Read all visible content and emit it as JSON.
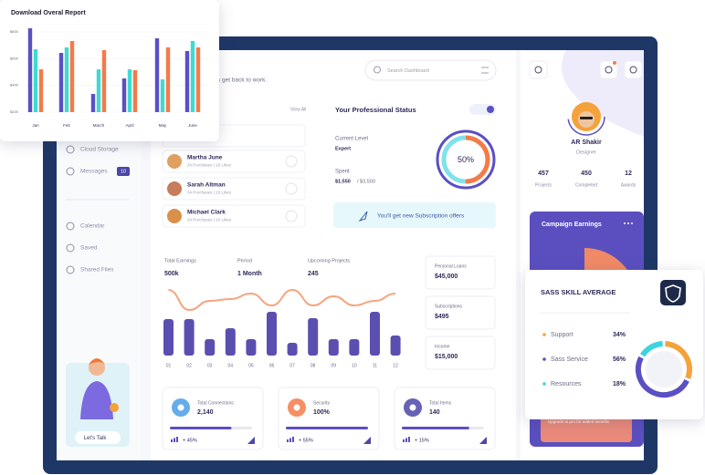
{
  "report_card": {
    "title": "Download Overal Report"
  },
  "chart_data": [
    {
      "type": "bar",
      "ylim": [
        200,
        850
      ],
      "yticks": [
        {
          "value": 800,
          "label": "$800"
        },
        {
          "value": 600,
          "label": "$600"
        },
        {
          "value": 400,
          "label": "$400"
        },
        {
          "value": 200,
          "label": "$200"
        }
      ],
      "categories": [
        "Jan",
        "Feb",
        "March",
        "April",
        "May",
        "June"
      ],
      "series": [
        {
          "color": "#5b4fc4",
          "values": [
            827,
            643,
            336,
            452,
            752,
            657
          ]
        },
        {
          "color": "#3ddbd0",
          "values": [
            670,
            684,
            520,
            520,
            445,
            732
          ]
        },
        {
          "color": "#f37b4a",
          "values": [
            520,
            732,
            664,
            514,
            684,
            684
          ]
        }
      ]
    },
    {
      "type": "bar",
      "categories": [
        "01",
        "02",
        "03",
        "04",
        "05",
        "06",
        "07",
        "08",
        "09",
        "10",
        "11",
        "12"
      ],
      "series": [
        {
          "type": "bar",
          "color": "#5a4fb0",
          "values": [
            40,
            40,
            18,
            30,
            18,
            48,
            14,
            41,
            18,
            18,
            48,
            22
          ]
        },
        {
          "type": "line",
          "color": "#f6a47f",
          "values": [
            72,
            50,
            60,
            62,
            68,
            55,
            72,
            55,
            65,
            55,
            60,
            68
          ]
        }
      ]
    }
  ],
  "header": {
    "greeting": "s get back to work.",
    "search_placeholder": "Search Dashboard"
  },
  "sidebar": {
    "items": [
      {
        "label": "Cloud Storage"
      },
      {
        "label": "Messages",
        "badge": "10"
      },
      {
        "label": "Calendar"
      },
      {
        "label": "Saved"
      },
      {
        "label": "Shared Files"
      }
    ],
    "talk": "Let's Talk"
  },
  "contacts": {
    "view_all": "View All",
    "people": [
      {
        "name": "Martha June",
        "detail": "34 Purchases | 10 Likes"
      },
      {
        "name": "Sarah Altman",
        "detail": "34 Purchases | 10 Likes"
      },
      {
        "name": "Michael Clark",
        "detail": "34 Purchases | 10 Likes"
      }
    ]
  },
  "status": {
    "title": "Your Professional Status",
    "level_label": "Current Level",
    "level": "Expert",
    "spent_label": "Spent",
    "spent": "$1,550",
    "spent_total": "/ $3,500",
    "progress": 50,
    "progress_label": "50%",
    "offer": "You'll get new Subscription offers"
  },
  "earnings": {
    "stats": [
      {
        "label": "Total Earnings",
        "value": "500k"
      },
      {
        "label": "Period",
        "value": "1 Month"
      },
      {
        "label": "Upcoming Projects",
        "value": "245"
      }
    ]
  },
  "finance": [
    {
      "label": "Personal Loans",
      "value": "$45,000"
    },
    {
      "label": "Subscriptions",
      "value": "$495"
    },
    {
      "label": "Income",
      "value": "$15,000"
    }
  ],
  "summary": [
    {
      "label": "Total Connections",
      "value": "2,140",
      "change": "+ 45%"
    },
    {
      "label": "Security",
      "value": "100%",
      "change": "+ 55%"
    },
    {
      "label": "Total Items",
      "value": "140",
      "change": "+ 15%"
    }
  ],
  "profile": {
    "name": "AR Shakir",
    "role": "Designer",
    "stats": [
      {
        "value": "457",
        "label": "Projects"
      },
      {
        "value": "450",
        "label": "Completed"
      },
      {
        "value": "12",
        "label": "Awards"
      }
    ]
  },
  "campaign": {
    "title": "Campaign Earnings",
    "note": "Upgrade to pro for added benefits"
  },
  "skills": {
    "title": "SASS SKILL AVERAGE",
    "items": [
      {
        "label": "Support",
        "value": 34,
        "value_label": "34%",
        "color": "#f4a23c"
      },
      {
        "label": "Sass Service",
        "value": 56,
        "value_label": "56%",
        "color": "#5a4fc4"
      },
      {
        "label": "Resources",
        "value": 18,
        "value_label": "18%",
        "color": "#3dd3e0"
      }
    ]
  }
}
